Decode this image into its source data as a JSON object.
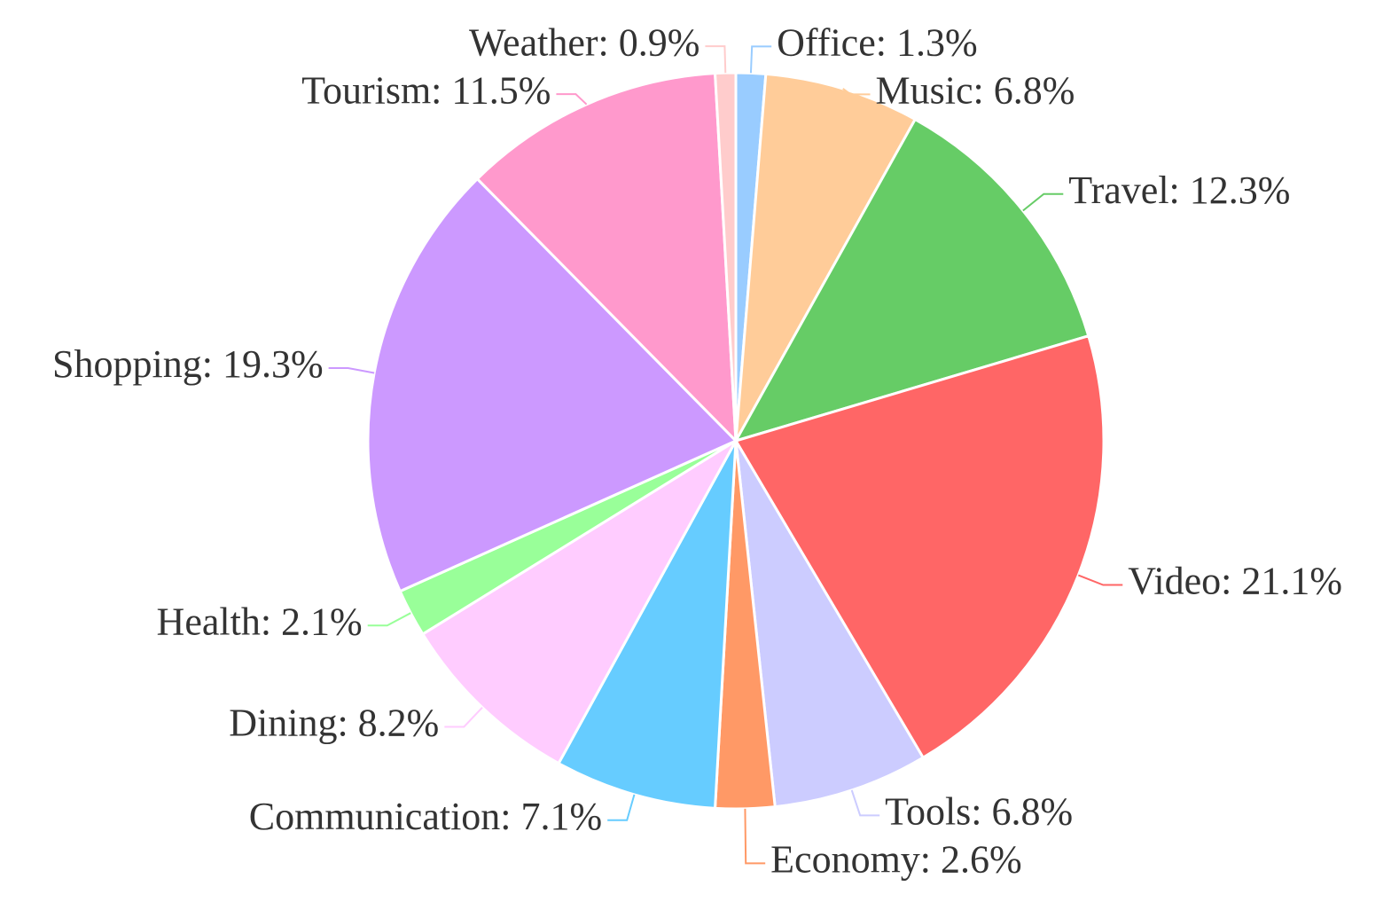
{
  "chart_data": {
    "type": "pie",
    "values": [
      1.3,
      6.8,
      12.3,
      21.1,
      6.8,
      2.6,
      7.1,
      8.2,
      2.1,
      19.3,
      11.5,
      0.9
    ],
    "value_labels": [
      "Office: 1.3%",
      "Music: 6.8%",
      "Travel: 12.3%",
      "Video: 21.1%",
      "Tools: 6.8%",
      "Economy: 2.6%",
      "Communication: 7.1%",
      "Dining: 8.2%",
      "Health: 2.1%",
      "Shopping: 19.3%",
      "Tourism: 11.5%",
      "Weather: 0.9%"
    ],
    "colors": [
      "#99ccff",
      "#ffcc99",
      "#66cc66",
      "#ff6666",
      "#ccccff",
      "#ff9966",
      "#66ccff",
      "#ffccff",
      "#99ff99",
      "#cc99ff",
      "#ff99cc",
      "#ffcccc"
    ]
  }
}
